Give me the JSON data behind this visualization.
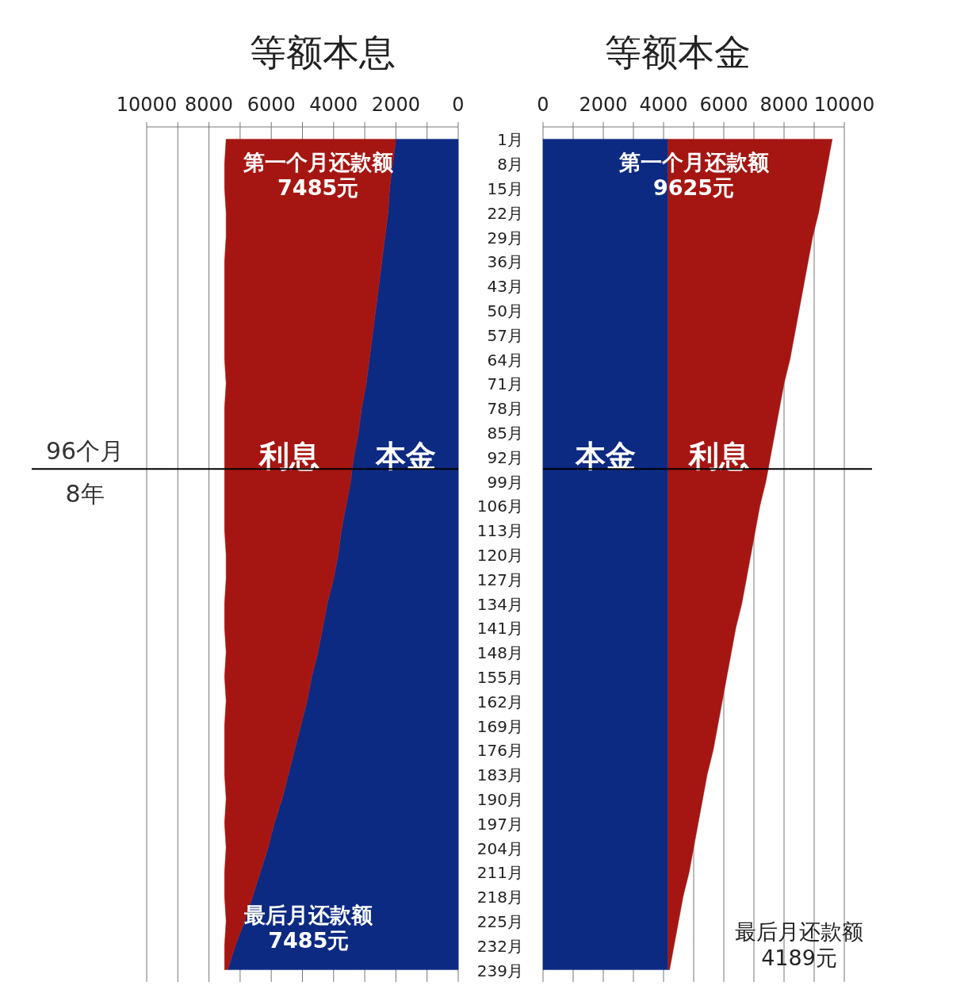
{
  "chart_data": [
    {
      "type": "area",
      "orientation": "horizontal",
      "stacked": true,
      "title": "等额本息",
      "tick_labels": "x",
      "grid": "x",
      "categories": [
        "1月",
        "8月",
        "15月",
        "22月",
        "29月",
        "36月",
        "43月",
        "50月",
        "57月",
        "64月",
        "71月",
        "78月",
        "85月",
        "92月",
        "99月",
        "106月",
        "113月",
        "120月",
        "127月",
        "134月",
        "141月",
        "148月",
        "155月",
        "162月",
        "169月",
        "176月",
        "183月",
        "190月",
        "197月",
        "204月",
        "211月",
        "218月",
        "225月",
        "232月",
        "239月"
      ],
      "xlim": [
        10000,
        0
      ],
      "xticks": [
        10000,
        {
          "value": 9000,
          "label": null
        },
        8000,
        {
          "value": 7000,
          "label": null
        },
        6000,
        {
          "value": 5000,
          "label": null
        },
        4000,
        {
          "value": 3000,
          "label": null
        },
        2000,
        {
          "value": 1000,
          "label": null
        },
        0
      ],
      "series": [
        {
          "name": "本金",
          "color": "#0d2a82",
          "values": [
            2000,
            2100,
            2200,
            2250,
            2350,
            2450,
            2550,
            2650,
            2750,
            2850,
            2950,
            3100,
            3200,
            3350,
            3450,
            3600,
            3750,
            3850,
            4000,
            4200,
            4350,
            4500,
            4700,
            4850,
            5050,
            5250,
            5450,
            5650,
            5900,
            6100,
            6350,
            6600,
            6850,
            7150,
            7400
          ]
        },
        {
          "name": "利息",
          "color": "#a51612",
          "values": [
            5450,
            5400,
            5300,
            5200,
            5100,
            5050,
            4950,
            4850,
            4750,
            4650,
            4500,
            4400,
            4300,
            4150,
            4050,
            3900,
            3750,
            3600,
            3450,
            3300,
            3150,
            2950,
            2800,
            2600,
            2450,
            2250,
            2050,
            1800,
            1600,
            1350,
            1150,
            900,
            600,
            350,
            100
          ]
        }
      ],
      "ref_lines": [
        {
          "axis": "y",
          "value": "99月",
          "label": "96个月",
          "color": "#000000"
        }
      ],
      "annotations": [
        "第一个月还款额\n7485元",
        "最后月还款额\n7485元",
        "8年"
      ]
    },
    {
      "type": "area",
      "orientation": "horizontal",
      "stacked": true,
      "title": "等额本金",
      "grid": "x",
      "categories": [
        "1月",
        "8月",
        "15月",
        "22月",
        "29月",
        "36月",
        "43月",
        "50月",
        "57月",
        "64月",
        "71月",
        "78月",
        "85月",
        "92月",
        "99月",
        "106月",
        "113月",
        "120月",
        "127月",
        "134月",
        "141月",
        "148月",
        "155月",
        "162月",
        "169月",
        "176月",
        "183月",
        "190月",
        "197月",
        "204月",
        "211月",
        "218月",
        "225月",
        "232月",
        "239月"
      ],
      "xlim": [
        0,
        10000
      ],
      "xticks": [
        0,
        {
          "value": 1000,
          "label": null
        },
        2000,
        {
          "value": 3000,
          "label": null
        },
        4000,
        {
          "value": 5000,
          "label": null
        },
        6000,
        {
          "value": 7000,
          "label": null
        },
        8000,
        {
          "value": 9000,
          "label": null
        },
        10000
      ],
      "series": [
        {
          "name": "本金",
          "color": "#0d2a82",
          "values": [
            4150,
            4150,
            4150,
            4150,
            4150,
            4150,
            4150,
            4150,
            4150,
            4150,
            4150,
            4150,
            4150,
            4150,
            4150,
            4150,
            4150,
            4150,
            4150,
            4150,
            4150,
            4150,
            4150,
            4150,
            4150,
            4150,
            4150,
            4150,
            4150,
            4150,
            4150,
            4150,
            4150,
            4150,
            4150
          ]
        },
        {
          "name": "利息",
          "color": "#a51612",
          "values": [
            5450,
            5300,
            5150,
            5000,
            4800,
            4650,
            4500,
            4350,
            4200,
            4050,
            3850,
            3700,
            3550,
            3400,
            3250,
            3050,
            2900,
            2750,
            2600,
            2450,
            2250,
            2100,
            1950,
            1800,
            1650,
            1500,
            1300,
            1150,
            1000,
            850,
            700,
            500,
            350,
            200,
            50
          ]
        }
      ],
      "ref_lines": [
        {
          "axis": "y",
          "value": "99月",
          "color": "#000000"
        }
      ],
      "annotations": [
        "第一个月还款额\n9625元",
        "最后月还款额\n4189元"
      ]
    }
  ]
}
